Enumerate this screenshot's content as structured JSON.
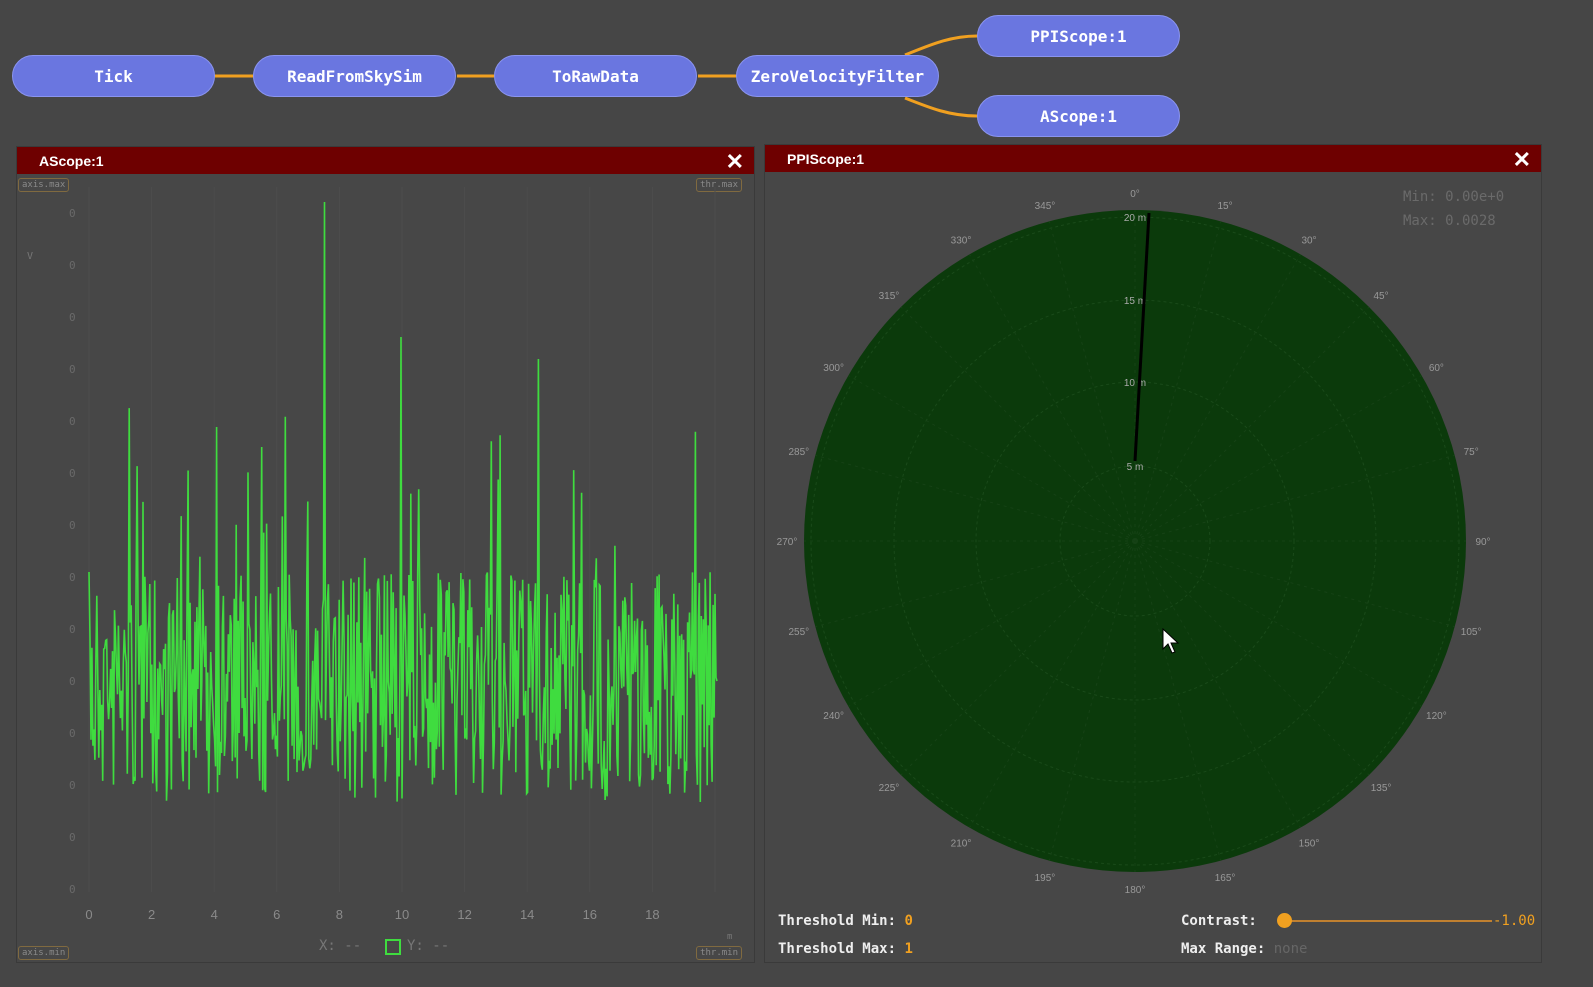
{
  "graph": {
    "nodes": [
      "Tick",
      "ReadFromSkySim",
      "ToRawData",
      "ZeroVelocityFilter",
      "PPIScope:1",
      "AScope:1"
    ],
    "wire_color": "#f0a020",
    "node_color": "#6a76e0"
  },
  "ascope": {
    "title": "AScope:1",
    "close_icon": "x-icon",
    "axis_max_tag": "axis.max",
    "axis_min_tag": "axis.min",
    "thr_max_tag": "thr.max",
    "thr_min_tag": "thr.min",
    "y_axis_label": "V",
    "x_axis_label": "m",
    "y_ticks": [
      "0",
      "0",
      "0",
      "0",
      "0",
      "0",
      "0",
      "0",
      "0",
      "0",
      "0",
      "0",
      "0",
      "0"
    ],
    "x_ticks": [
      "0",
      "2",
      "4",
      "6",
      "8",
      "10",
      "12",
      "14",
      "16",
      "18"
    ],
    "readout_x": "X: --",
    "readout_y": "Y: --",
    "trace_color": "#3fdc3f"
  },
  "ppiscope": {
    "title": "PPIScope:1",
    "close_icon": "x-icon",
    "min_label": "Min: 0.00e+0",
    "max_label": "Max: 0.0028",
    "range_rings": [
      "5 m",
      "10 m",
      "15 m",
      "20 m"
    ],
    "angles": [
      "0°",
      "15°",
      "30°",
      "45°",
      "60°",
      "75°",
      "90°",
      "105°",
      "120°",
      "135°",
      "150°",
      "165°",
      "180°",
      "195°",
      "210°",
      "225°",
      "240°",
      "255°",
      "270°",
      "285°",
      "300°",
      "315°",
      "330°",
      "345°"
    ],
    "scope_color": "#0b3a0b",
    "threshold_min_label": "Threshold Min:",
    "threshold_min": "0",
    "threshold_max_label": "Threshold Max:",
    "threshold_max": "1",
    "contrast_label": "Contrast:",
    "contrast_value": "-1.00",
    "contrast_fraction": 0,
    "max_range_label": "Max Range:",
    "max_range_value": "none"
  }
}
